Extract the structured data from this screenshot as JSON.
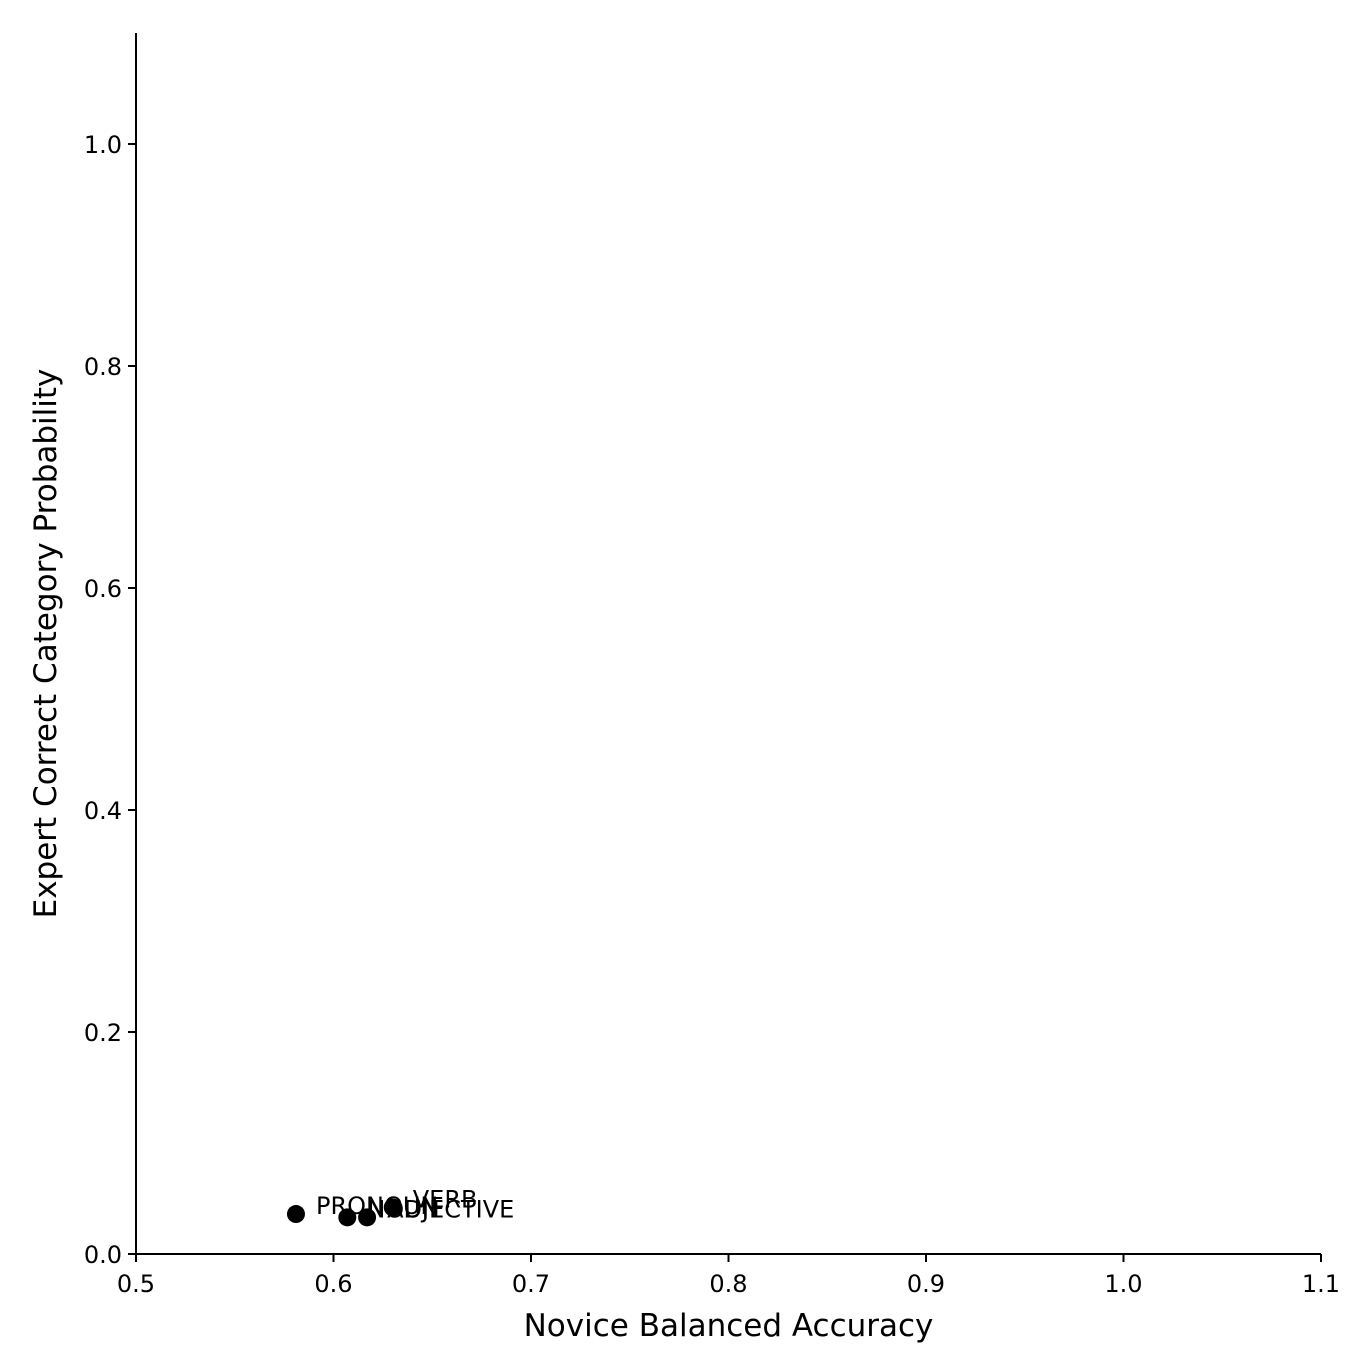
{
  "chart_data": {
    "type": "scatter",
    "title": "",
    "xlabel": "Novice Balanced Accuracy",
    "ylabel": "Expert Correct Category Probability",
    "xlim": [
      0.5,
      1.1
    ],
    "ylim": [
      0.0,
      1.1
    ],
    "x_ticks": [
      0.5,
      0.6,
      0.7,
      0.8,
      0.9,
      1.0,
      1.1
    ],
    "x_tick_labels": [
      "0.5",
      "0.6",
      "0.7",
      "0.8",
      "0.9",
      "1.0",
      "1.1"
    ],
    "y_ticks": [
      0.0,
      0.2,
      0.4,
      0.6,
      0.8,
      1.0
    ],
    "y_tick_labels": [
      "0.0",
      "0.2",
      "0.4",
      "0.6",
      "0.8",
      "1.0"
    ],
    "grid": false,
    "marker_color": "#000000",
    "points": [
      {
        "label": "PRONOUN",
        "x": 0.581,
        "y": 0.036
      },
      {
        "label": "NOUN",
        "x": 0.607,
        "y": 0.033
      },
      {
        "label": "ADJECTIVE",
        "x": 0.617,
        "y": 0.033
      },
      {
        "label": "VERB",
        "x": 0.63,
        "y": 0.042
      }
    ]
  }
}
